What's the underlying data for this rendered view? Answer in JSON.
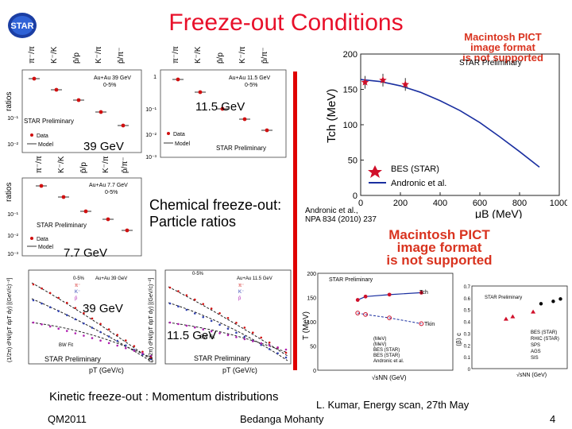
{
  "slide": {
    "title": "Freeze-out Conditions",
    "logo_text": "STAR",
    "pict_notice": [
      "Macintosh PICT",
      "image format",
      "is not supported"
    ],
    "center_caption_1": "Chemical freeze-out:",
    "center_caption_2": "Particle ratios",
    "bottom_caption": "Kinetic freeze-out : Momentum distributions",
    "citation_1": "Andronic et al.,",
    "citation_2": "NPA 834 (2010) 237",
    "footer_left": "QM2011",
    "footer_center": "Bedanga Mohanty",
    "footer_right": "L. Kumar, Energy scan, 27th May",
    "page_number": "4"
  },
  "ratio_panels": {
    "ratio_labels": [
      "π⁻/π⁺",
      "K⁻/K⁺",
      "p̄/p",
      "K⁻/π⁻",
      "p̄/π⁻"
    ],
    "ylabel": "ratios",
    "legend_data": "Data",
    "legend_model": "Model",
    "preliminary": "STAR Preliminary",
    "panel_39": {
      "energy": "39 GeV",
      "system": "Au+Au 39 GeV",
      "centrality": "0-5%"
    },
    "panel_11": {
      "energy": "11.5 GeV",
      "system": "Au+Au 11.5 GeV",
      "centrality": "0-5%"
    },
    "panel_7": {
      "energy": "7.7 GeV",
      "system": "Au+Au 7.7 GeV",
      "centrality": "0-5%"
    },
    "tick_1": "1",
    "tick_m1": "10⁻¹",
    "tick_m2": "10⁻²",
    "tick_m3": "10⁻³"
  },
  "spectra_panels": {
    "left": {
      "energy": "39 GeV",
      "system": "Au+Au 39 GeV",
      "centrality": "0-5%",
      "fit": "BW Fit",
      "preliminary": "STAR Preliminary",
      "xlabel": "pT (GeV/c)",
      "ylabel": "(1/2π) d²N/(pT dpT dy) [(GeV/c)⁻²]"
    },
    "right": {
      "energy": "11.5 GeV",
      "system": "Au+Au 11.5 GeV",
      "centrality": "0-5%",
      "fit": "BW Fit",
      "preliminary": "STAR Preliminary",
      "xlabel": "pT (GeV/c)",
      "ylabel": "(1/2π) d²N/(pT dpT dy) [(GeV/c)⁻²]"
    },
    "legend": [
      "π⁻",
      "K⁻",
      "p̄"
    ]
  },
  "chart_data": [
    {
      "type": "scatter",
      "title": "STAR Preliminary",
      "xlabel": "μB (MeV)",
      "ylabel": "Tch (MeV)",
      "xlim": [
        0,
        1000
      ],
      "ylim": [
        0,
        200
      ],
      "xticks": [
        "0",
        "200",
        "400",
        "600",
        "800",
        "1000"
      ],
      "yticks": [
        "0",
        "50",
        "100",
        "150",
        "200"
      ],
      "series": [
        {
          "name": "BES (STAR)",
          "x": [
            22,
            112,
            225
          ],
          "y": [
            160,
            163,
            157
          ],
          "color": "#d0102a"
        },
        {
          "name": "Andronic et al.",
          "x": [
            0,
            100,
            200,
            300,
            400,
            500,
            600,
            700,
            800,
            900
          ],
          "y": [
            164,
            161,
            155,
            146,
            134,
            120,
            103,
            83,
            62,
            40
          ],
          "color": "#1a2fa0"
        }
      ]
    },
    {
      "type": "scatter",
      "title": "STAR Preliminary",
      "xlabel": "√sNN (GeV)",
      "ylabel": "T (MeV)",
      "xlim": [
        1,
        1000
      ],
      "ylim": [
        0,
        200
      ],
      "yticks": [
        "0",
        "50",
        "100",
        "150",
        "200"
      ],
      "legend": [
        "(MeV)",
        "(MeV)",
        "BES (STAR)",
        "BES (STAR)",
        "Andronic et al."
      ],
      "curve_labels": [
        "Tch",
        "Tkin"
      ],
      "series": [
        {
          "name": "Tch",
          "x": [
            7.7,
            11.5,
            39,
            200
          ],
          "y": [
            145,
            152,
            156,
            160
          ],
          "color": "#d0102a"
        },
        {
          "name": "Tkin",
          "x": [
            7.7,
            11.5,
            39,
            200
          ],
          "y": [
            118,
            115,
            108,
            96
          ],
          "color": "#d0102a"
        }
      ]
    },
    {
      "type": "scatter",
      "title": "STAR Preliminary",
      "xlabel": "√sNN (GeV)",
      "ylabel": "⟨β⟩ c",
      "ylim": [
        0,
        0.7
      ],
      "yticks": [
        "0",
        "0.1",
        "0.2",
        "0.3",
        "0.4",
        "0.5",
        "0.6",
        "0.7"
      ],
      "legend": [
        "BES (STAR)",
        "RHIC (STAR)",
        "SPS",
        "AGS",
        "SIS"
      ],
      "series": [
        {
          "name": "BES (STAR)",
          "x": [
            7.7,
            11.5,
            39
          ],
          "y": [
            0.42,
            0.44,
            0.48
          ],
          "color": "#d0102a"
        },
        {
          "name": "RHIC (STAR)",
          "x": [
            62.4,
            130,
            200
          ],
          "y": [
            0.55,
            0.57,
            0.59
          ],
          "color": "#000000"
        }
      ]
    }
  ]
}
